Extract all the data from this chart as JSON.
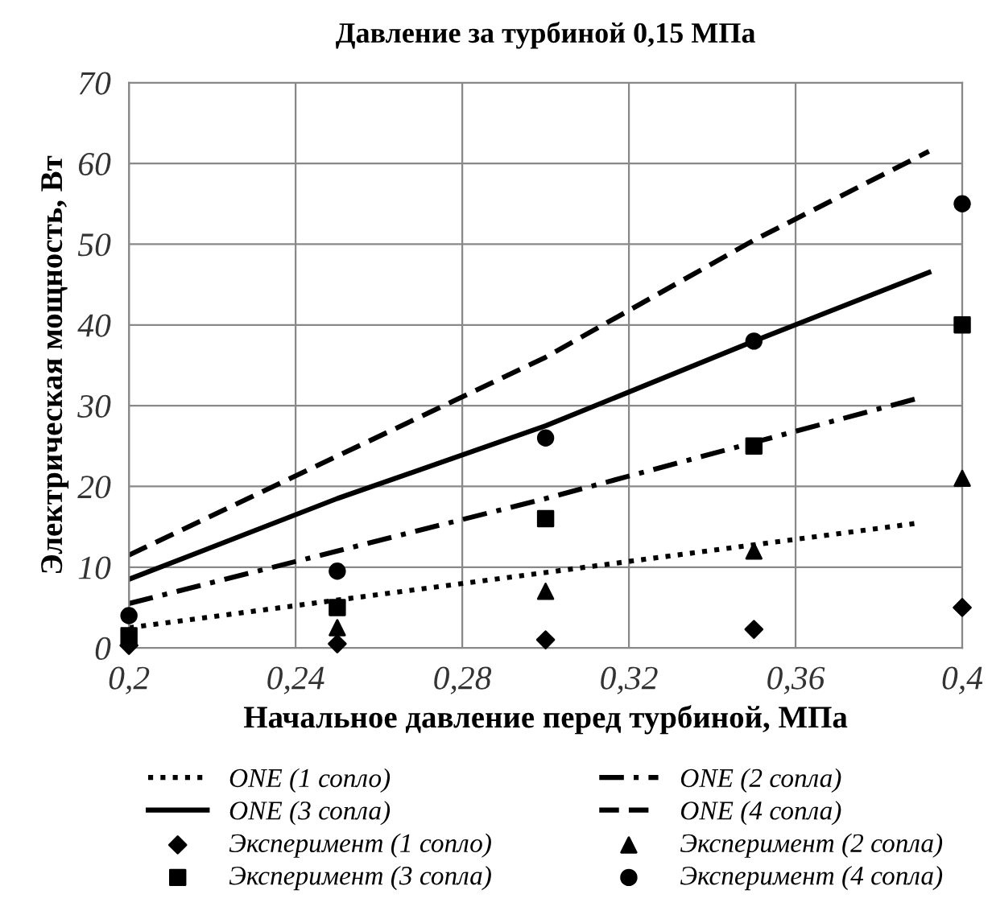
{
  "chart_data": {
    "type": "line",
    "title": "Давление за турбиной 0,15 МПа",
    "xlabel": "Начальное давление перед турбиной, МПа",
    "ylabel": "Электрическая мощность, Вт",
    "xlim": [
      0.2,
      0.4
    ],
    "xticks": [
      {
        "value": 0.2,
        "label": "0,2"
      },
      {
        "value": 0.24,
        "label": "0,24"
      },
      {
        "value": 0.28,
        "label": "0,28"
      },
      {
        "value": 0.32,
        "label": "0,32"
      },
      {
        "value": 0.36,
        "label": "0,36"
      },
      {
        "value": 0.4,
        "label": "0,4"
      }
    ],
    "ylim": [
      0,
      70
    ],
    "yticks": [
      0,
      10,
      20,
      30,
      40,
      50,
      60,
      70
    ],
    "grid": true,
    "legend": "bottom",
    "series": [
      {
        "name": "ONE (1 сопло)",
        "line_style": "dotted",
        "marker": "none",
        "color": "#000000",
        "x": [
          0.2,
          0.39
        ],
        "values": [
          2.5,
          15.5
        ]
      },
      {
        "name": "ONE (2 сопла)",
        "line_style": "dashdot",
        "marker": "none",
        "color": "#000000",
        "x": [
          0.2,
          0.3,
          0.39
        ],
        "values": [
          5.5,
          18.5,
          31
        ]
      },
      {
        "name": "ONE (3 сопла)",
        "line_style": "solid",
        "marker": "none",
        "color": "#000000",
        "x": [
          0.2,
          0.25,
          0.3,
          0.35,
          0.392
        ],
        "values": [
          8.5,
          18.5,
          27.5,
          38,
          46.5
        ]
      },
      {
        "name": "ONE (4 сопла)",
        "line_style": "dashed",
        "marker": "none",
        "color": "#000000",
        "x": [
          0.2,
          0.3,
          0.35,
          0.392
        ],
        "values": [
          11.5,
          36,
          50.5,
          61.5
        ]
      },
      {
        "name": "Эксперимент (1 сопло)",
        "type": "scatter",
        "marker": "diamond",
        "color": "#000000",
        "x": [
          0.2,
          0.25,
          0.3,
          0.35,
          0.4
        ],
        "values": [
          0.3,
          0.5,
          1,
          2.3,
          5
        ]
      },
      {
        "name": "Эксперимент (2 сопла)",
        "type": "scatter",
        "marker": "triangle",
        "color": "#000000",
        "x": [
          0.25,
          0.3,
          0.35,
          0.4
        ],
        "values": [
          2.5,
          7,
          12,
          21
        ]
      },
      {
        "name": "Эксперимент (3 сопла)",
        "type": "scatter",
        "marker": "square",
        "color": "#000000",
        "x": [
          0.2,
          0.25,
          0.3,
          0.35,
          0.4
        ],
        "values": [
          1.5,
          5,
          16,
          25,
          40
        ]
      },
      {
        "name": "Эксперимент (4 сопла)",
        "type": "scatter",
        "marker": "circle",
        "color": "#000000",
        "x": [
          0.2,
          0.25,
          0.3,
          0.35,
          0.4
        ],
        "values": [
          4,
          9.5,
          26,
          38,
          55
        ]
      }
    ]
  }
}
